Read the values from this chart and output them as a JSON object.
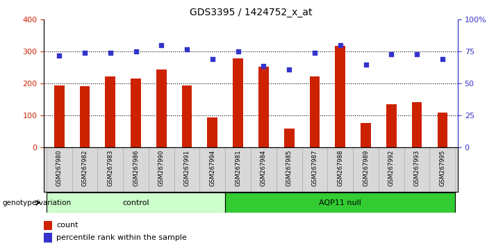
{
  "title": "GDS3395 / 1424752_x_at",
  "categories": [
    "GSM267980",
    "GSM267982",
    "GSM267983",
    "GSM267986",
    "GSM267990",
    "GSM267991",
    "GSM267994",
    "GSM267981",
    "GSM267984",
    "GSM267985",
    "GSM267987",
    "GSM267988",
    "GSM267989",
    "GSM267992",
    "GSM267993",
    "GSM267995"
  ],
  "bar_values": [
    195,
    192,
    222,
    215,
    245,
    195,
    95,
    278,
    252,
    60,
    222,
    318,
    78,
    135,
    142,
    110
  ],
  "percentile_values_pct": [
    72,
    74,
    74,
    75,
    80,
    77,
    69,
    75,
    64,
    61,
    74,
    80,
    65,
    73,
    73,
    69
  ],
  "bar_color": "#cc2200",
  "percentile_color": "#3333cc",
  "n_control": 7,
  "n_aqp11": 9,
  "control_color": "#ccffcc",
  "aqp11_color": "#33cc33",
  "tick_bg_color": "#d8d8d8",
  "ylim_left": [
    0,
    400
  ],
  "ylim_right": [
    0,
    100
  ],
  "yticks_left": [
    0,
    100,
    200,
    300,
    400
  ],
  "yticks_right": [
    0,
    25,
    50,
    75,
    100
  ],
  "ytick_labels_right": [
    "0",
    "25",
    "50",
    "75",
    "100%"
  ],
  "genotype_label": "genotype/variation",
  "control_label": "control",
  "aqp11_label": "AQP11 null",
  "legend_count": "count",
  "legend_percentile": "percentile rank within the sample",
  "left_axis_color": "#cc2200",
  "right_axis_color": "#3333cc"
}
